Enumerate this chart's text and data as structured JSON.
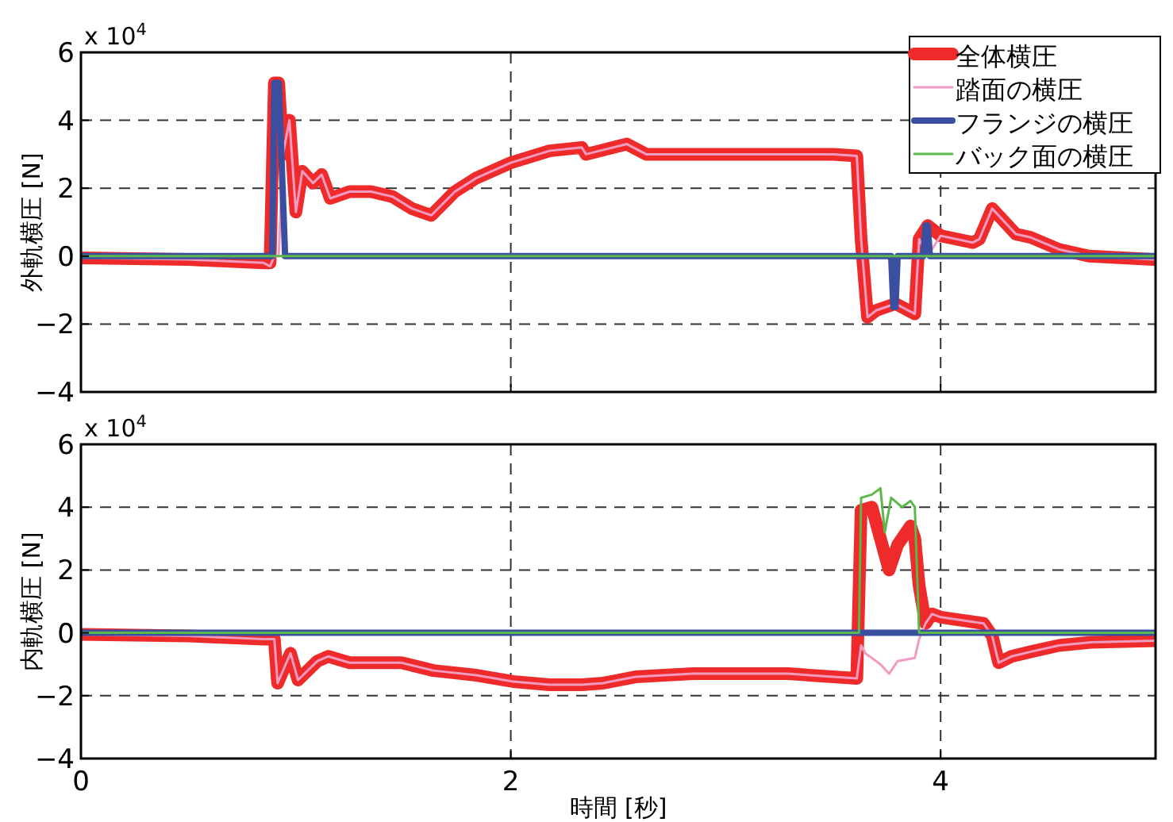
{
  "chart_data": [
    {
      "type": "line",
      "ylabel": "外軌横圧 [N]",
      "annotations": [
        "x 10$^{4}$"
      ],
      "xlim": [
        0,
        5
      ],
      "xticks": [
        0,
        2,
        4
      ],
      "ylim": [
        -4,
        6
      ],
      "yticks": [
        -4,
        -2,
        0,
        2,
        4,
        6
      ],
      "grid": true,
      "legend": "top right",
      "tick_labels": "y",
      "series": [
        {
          "name": "全体横圧",
          "color": "#ee2a2a",
          "x": [
            0,
            0.5,
            0.85,
            0.88,
            0.9,
            0.92,
            0.94,
            0.97,
            1.0,
            1.03,
            1.08,
            1.12,
            1.16,
            1.25,
            1.35,
            1.45,
            1.54,
            1.63,
            1.74,
            1.84,
            2.0,
            2.18,
            2.33,
            2.35,
            2.54,
            2.63,
            2.87,
            3.17,
            3.5,
            3.61,
            3.63,
            3.66,
            3.7,
            3.79,
            3.88,
            3.9,
            3.94,
            4.0,
            4.15,
            4.18,
            4.24,
            4.35,
            4.42,
            4.55,
            4.69,
            4.99
          ],
          "values": [
            -0.05,
            -0.1,
            -0.2,
            -0.2,
            5.1,
            5.1,
            3.0,
            4.0,
            1.3,
            2.5,
            2.15,
            2.4,
            1.7,
            1.9,
            1.9,
            1.75,
            1.4,
            1.2,
            1.9,
            2.3,
            2.75,
            3.1,
            3.2,
            3.0,
            3.3,
            3.0,
            3.0,
            3.0,
            3.0,
            2.95,
            0.5,
            -1.8,
            -1.6,
            -1.4,
            -1.7,
            0.5,
            0.9,
            0.6,
            0.4,
            0.5,
            1.4,
            0.65,
            0.55,
            0.2,
            0.0,
            -0.1
          ]
        },
        {
          "name": "踏面の横圧",
          "color": "#f29ac0",
          "x": [
            0,
            0.5,
            0.85,
            0.88,
            0.9,
            0.92,
            0.94,
            0.97,
            1.0,
            1.03,
            1.08,
            1.12,
            1.16,
            1.25,
            1.35,
            1.45,
            1.54,
            1.63,
            1.74,
            1.84,
            2.0,
            2.18,
            2.33,
            2.35,
            2.54,
            2.63,
            2.87,
            3.17,
            3.5,
            3.61,
            3.63,
            3.66,
            3.7,
            3.79,
            3.88,
            3.9,
            3.94,
            4.0,
            4.15,
            4.18,
            4.24,
            4.35,
            4.42,
            4.55,
            4.69,
            4.99
          ],
          "values": [
            -0.05,
            -0.1,
            -0.2,
            -0.3,
            0.0,
            0.0,
            3.0,
            4.0,
            1.3,
            2.5,
            2.15,
            2.4,
            1.7,
            1.9,
            1.9,
            1.75,
            1.4,
            1.2,
            1.9,
            2.3,
            2.75,
            3.1,
            3.2,
            3.0,
            3.3,
            3.0,
            3.0,
            3.0,
            3.0,
            2.95,
            0.5,
            -1.8,
            -1.6,
            -1.4,
            -1.7,
            0.5,
            0.0,
            0.6,
            0.4,
            0.5,
            1.4,
            0.65,
            0.55,
            0.2,
            0.0,
            -0.1
          ]
        },
        {
          "name": "フランジの横圧",
          "color": "#3b4fa0",
          "x": [
            0,
            0.89,
            0.9,
            0.92,
            0.95,
            3.77,
            3.78,
            3.79,
            3.8,
            3.92,
            3.93,
            3.94,
            3.95,
            5
          ],
          "values": [
            0,
            0,
            5.1,
            5.1,
            0,
            0,
            -1.5,
            -1.5,
            0,
            0,
            0.9,
            0.9,
            0,
            0
          ]
        },
        {
          "name": "バック面の横圧",
          "color": "#5cb84a",
          "x": [
            0,
            5
          ],
          "values": [
            0,
            0
          ]
        }
      ]
    },
    {
      "type": "line",
      "ylabel": "内軌横圧 [N]",
      "xlabel": "時間 [秒]",
      "annotations": [
        "x 10$^{4}$"
      ],
      "xlim": [
        0,
        5
      ],
      "xticks": [
        0,
        2,
        4
      ],
      "ylim": [
        -4,
        6
      ],
      "yticks": [
        -4,
        -2,
        0,
        2,
        4,
        6
      ],
      "grid": true,
      "series": [
        {
          "color": "#ee2a2a",
          "x": [
            0,
            0.5,
            0.85,
            0.9,
            0.915,
            0.975,
            1.01,
            1.1,
            1.15,
            1.25,
            1.49,
            1.64,
            1.84,
            2.01,
            2.18,
            2.33,
            2.43,
            2.58,
            2.85,
            3.29,
            3.61,
            3.63,
            3.68,
            3.72,
            3.76,
            3.8,
            3.84,
            3.86,
            3.88,
            3.9,
            3.93,
            3.96,
            4.0,
            4.2,
            4.24,
            4.27,
            4.33,
            4.42,
            4.55,
            4.7,
            5.0
          ],
          "values": [
            -0.05,
            -0.1,
            -0.2,
            -0.2,
            -1.6,
            -0.65,
            -1.5,
            -0.9,
            -0.75,
            -0.95,
            -0.95,
            -1.2,
            -1.35,
            -1.55,
            -1.65,
            -1.65,
            -1.6,
            -1.4,
            -1.3,
            -1.3,
            -1.45,
            3.9,
            4.0,
            3.0,
            2.0,
            2.8,
            3.2,
            3.4,
            3.0,
            1.5,
            0.3,
            0.6,
            0.5,
            0.3,
            -0.1,
            -0.95,
            -0.75,
            -0.6,
            -0.4,
            -0.3,
            -0.25
          ]
        },
        {
          "color": "#f29ac0",
          "x": [
            0,
            0.5,
            0.85,
            0.9,
            0.915,
            0.975,
            1.01,
            1.1,
            1.15,
            1.25,
            1.49,
            1.64,
            1.84,
            2.01,
            2.18,
            2.33,
            2.43,
            2.58,
            2.85,
            3.29,
            3.61,
            3.63,
            3.65,
            3.72,
            3.76,
            3.8,
            3.88,
            3.9,
            3.93,
            3.96,
            4.0,
            4.2,
            4.24,
            4.27,
            4.33,
            4.42,
            4.55,
            4.7,
            5.0
          ],
          "values": [
            -0.05,
            -0.1,
            -0.2,
            -0.2,
            -1.6,
            -0.65,
            -1.5,
            -0.9,
            -0.75,
            -0.95,
            -0.95,
            -1.2,
            -1.35,
            -1.55,
            -1.65,
            -1.65,
            -1.6,
            -1.4,
            -1.3,
            -1.3,
            -1.45,
            -0.4,
            -0.65,
            -1.0,
            -1.3,
            -0.9,
            -0.8,
            -0.2,
            0.3,
            0.6,
            0.5,
            0.3,
            -0.1,
            -0.95,
            -0.75,
            -0.6,
            -0.4,
            -0.3,
            -0.25
          ]
        },
        {
          "color": "#3b4fa0",
          "x": [
            0,
            5
          ],
          "values": [
            0,
            0
          ]
        },
        {
          "color": "#5cb84a",
          "x": [
            0,
            3.62,
            3.63,
            3.68,
            3.72,
            3.74,
            3.77,
            3.82,
            3.86,
            3.88,
            3.9,
            5
          ],
          "values": [
            0,
            0,
            4.3,
            4.4,
            4.6,
            3.2,
            4.3,
            4.0,
            4.2,
            4.0,
            0,
            0
          ]
        }
      ]
    }
  ]
}
